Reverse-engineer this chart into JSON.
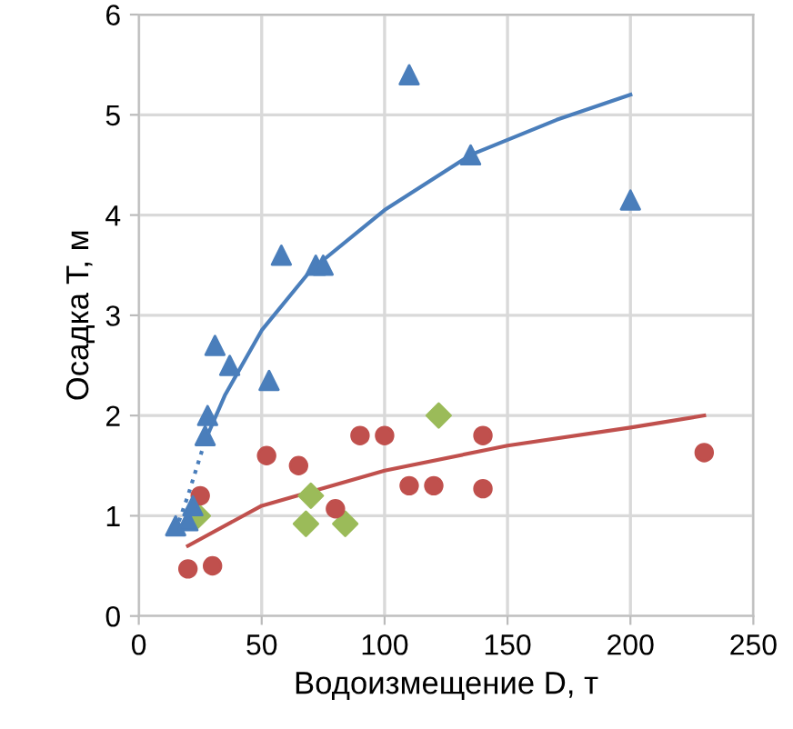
{
  "chart_data": {
    "type": "scatter",
    "xlabel": "Водоизмещение D, т",
    "ylabel": "Осадка T, м",
    "xlim": [
      0,
      250
    ],
    "ylim": [
      0,
      6
    ],
    "xticks": [
      0,
      50,
      100,
      150,
      200,
      250
    ],
    "yticks": [
      0,
      1,
      2,
      3,
      4,
      5,
      6
    ],
    "grid": true,
    "legend": false,
    "series": [
      {
        "marker": "triangle",
        "color": "#4a7ebb",
        "x": [
          15,
          20,
          22,
          27,
          28,
          31,
          37,
          53,
          58,
          72,
          75,
          110,
          135,
          200
        ],
        "values": [
          0.9,
          0.95,
          1.1,
          1.8,
          2.0,
          2.7,
          2.5,
          2.35,
          3.6,
          3.5,
          3.5,
          5.4,
          4.6,
          4.15
        ]
      },
      {
        "marker": "circle",
        "color": "#c0504d",
        "x": [
          20,
          25,
          30,
          52,
          65,
          80,
          90,
          100,
          110,
          120,
          140,
          140,
          230
        ],
        "values": [
          0.47,
          1.2,
          0.5,
          1.6,
          1.5,
          1.07,
          1.8,
          1.8,
          1.3,
          1.3,
          1.8,
          1.27,
          1.63
        ]
      },
      {
        "marker": "diamond",
        "color": "#9bbb59",
        "x": [
          24,
          68,
          70,
          84,
          122
        ],
        "values": [
          1.0,
          0.92,
          1.2,
          0.92,
          2.0
        ]
      },
      {
        "type": "line",
        "line_style": "dotted",
        "color": "#4a7ebb",
        "x": [
          15,
          20,
          27
        ],
        "values": [
          0.85,
          1.2,
          1.75
        ]
      },
      {
        "type": "line",
        "line_style": "solid",
        "color": "#4a7ebb",
        "x": [
          27,
          35,
          50,
          70,
          100,
          135,
          170,
          200
        ],
        "values": [
          1.75,
          2.2,
          2.85,
          3.45,
          4.05,
          4.6,
          4.95,
          5.2
        ]
      },
      {
        "type": "line",
        "line_style": "solid",
        "color": "#c0504d",
        "x": [
          20,
          50,
          100,
          150,
          200,
          230
        ],
        "values": [
          0.7,
          1.1,
          1.45,
          1.7,
          1.88,
          2.0
        ]
      }
    ]
  }
}
